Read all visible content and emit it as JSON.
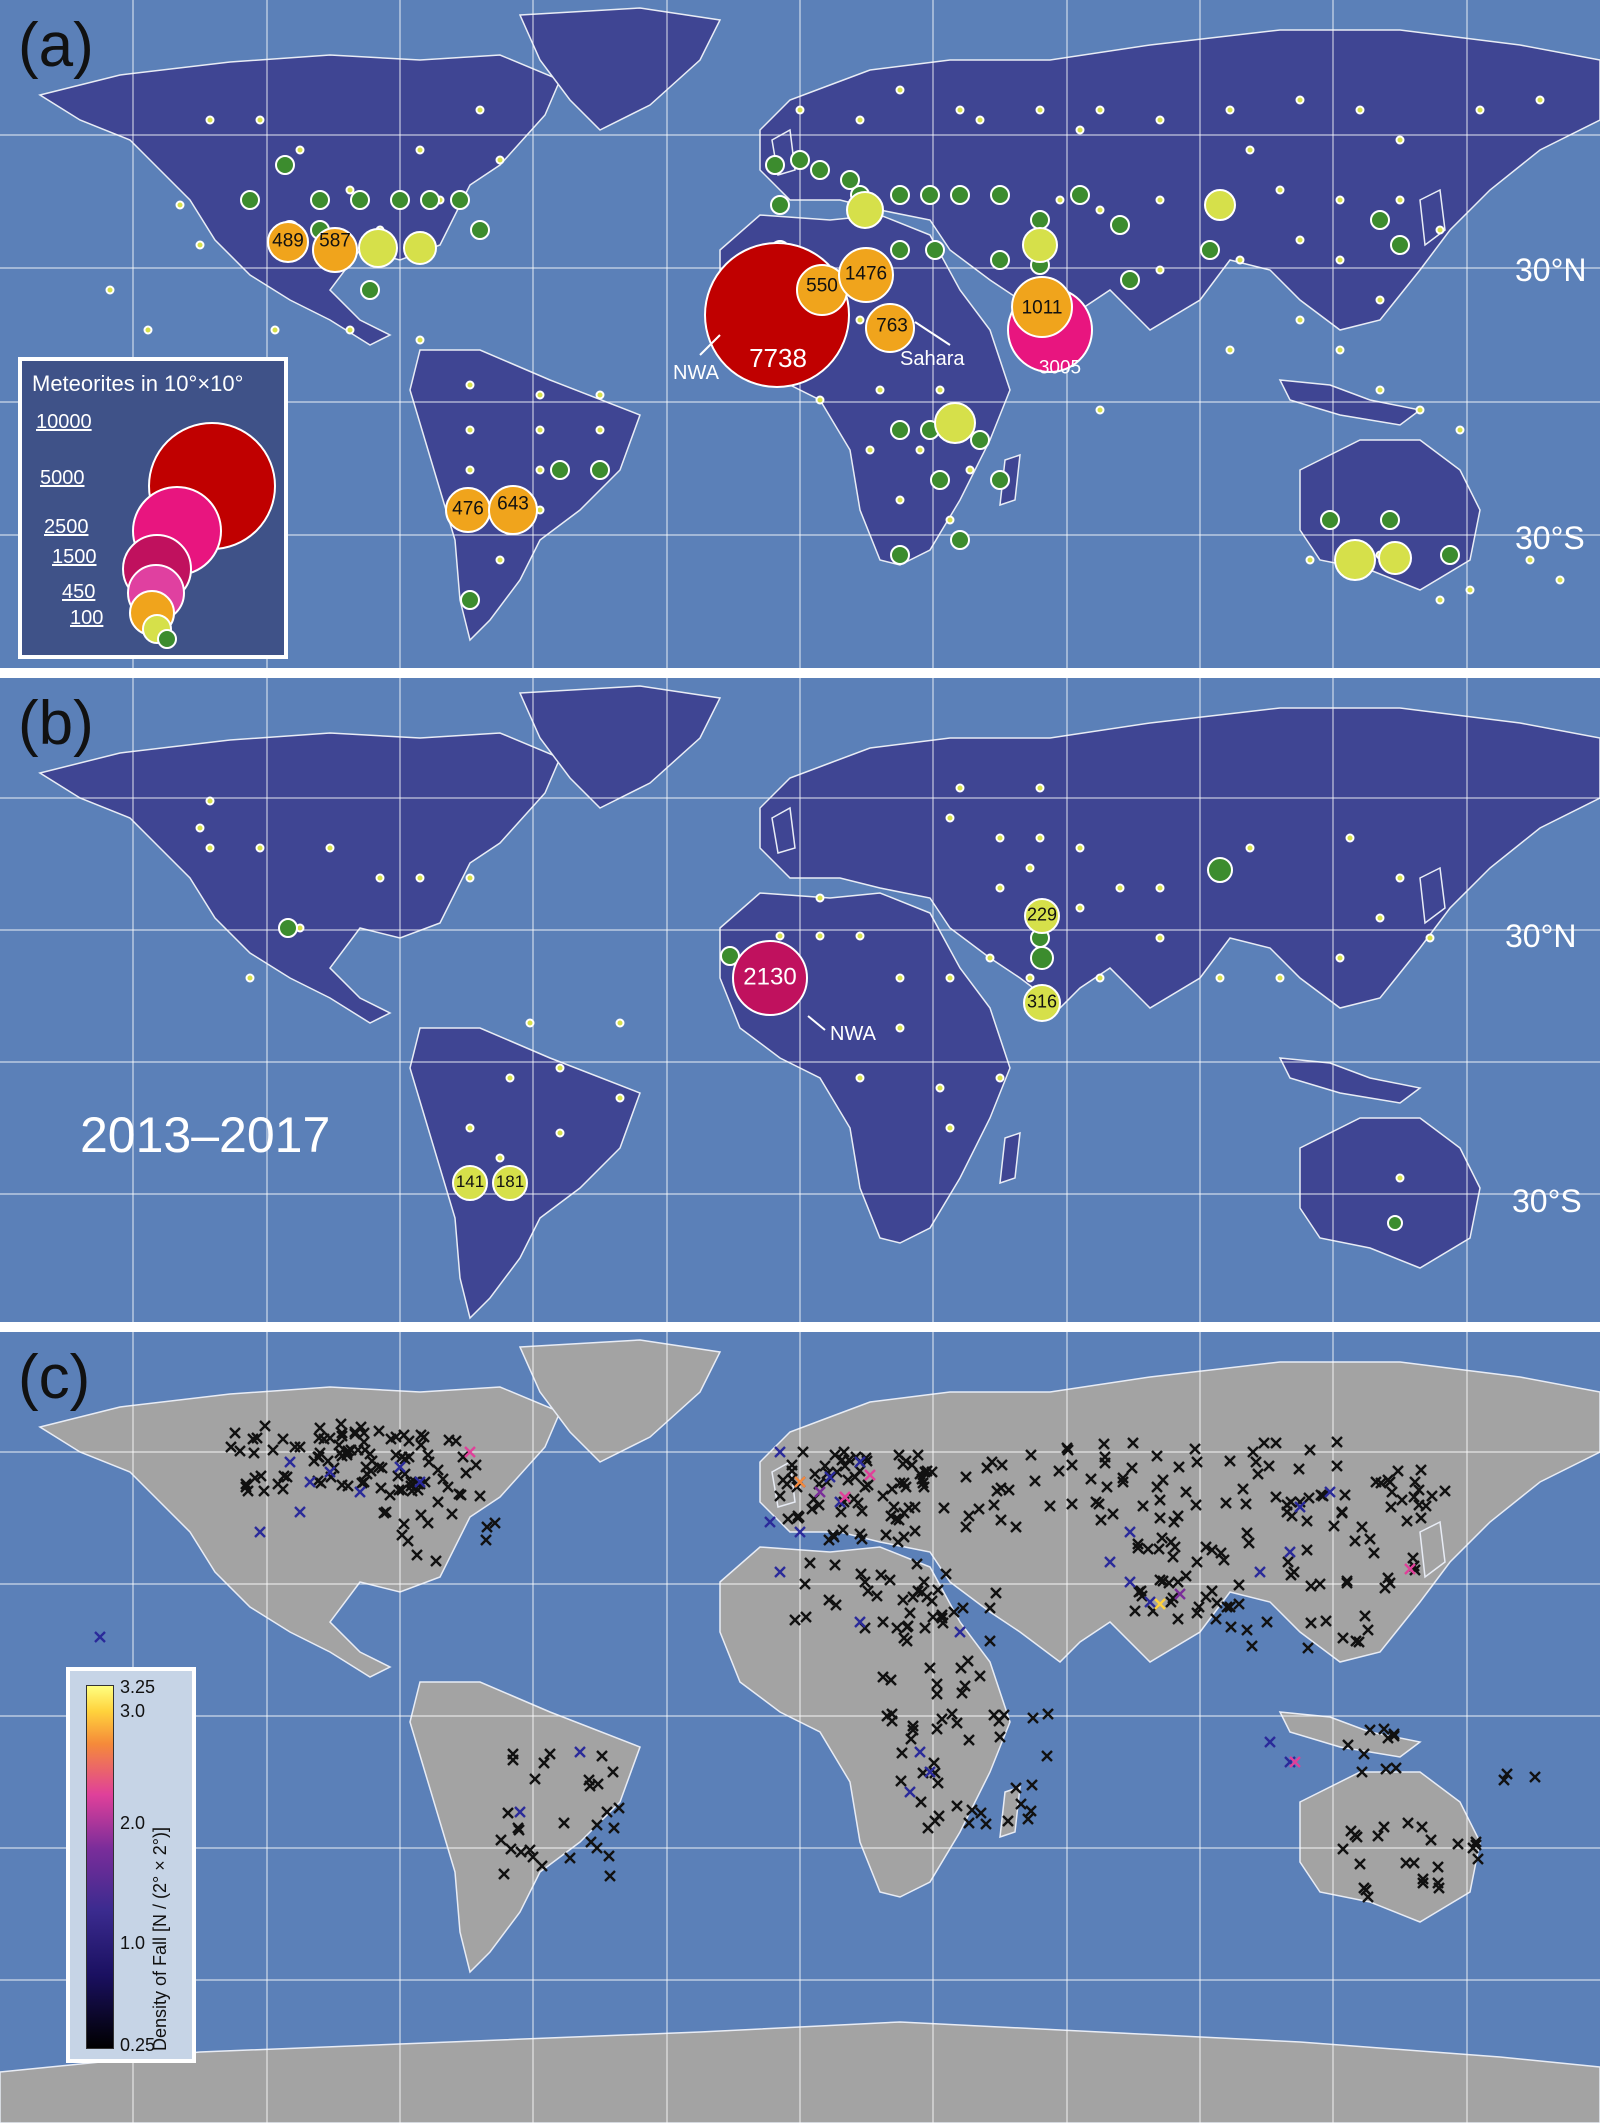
{
  "panels": {
    "a": {
      "label": "(a)",
      "lat_north": "30°N",
      "lat_south": "30°S",
      "legend_title": "Meteorites in 10°×10°",
      "legend_values": [
        "10000",
        "5000",
        "2500",
        "1500",
        "450",
        "100"
      ],
      "annotations": {
        "nwa": "NWA",
        "sahara": "Sahara"
      },
      "bubble_labels": [
        "489",
        "587",
        "550",
        "1476",
        "763",
        "7738",
        "1011",
        "3005",
        "476",
        "643"
      ]
    },
    "b": {
      "label": "(b)",
      "lat_north": "30°N",
      "lat_south": "30°S",
      "period": "2013–2017",
      "annotations": {
        "nwa": "NWA"
      },
      "bubble_labels": [
        "229",
        "2130",
        "316",
        "141",
        "181"
      ]
    },
    "c": {
      "label": "(c)",
      "colorbar_title": "Density of Fall [N / (2° × 2°)]",
      "colorbar_ticks": [
        "3.25",
        "3.0",
        "2.0",
        "1.0",
        "0.25"
      ]
    }
  },
  "colors": {
    "ocean": "#5b80b8",
    "land_a": "#3f4593",
    "land_c": "#a3a3a3",
    "dot_green": "#3c8c2e",
    "bubble_yellow": "#d6e04a",
    "bubble_orange": "#f0a41c",
    "bubble_pink": "#e8157f",
    "bubble_magenta": "#c0115e",
    "bubble_red": "#c00000"
  }
}
